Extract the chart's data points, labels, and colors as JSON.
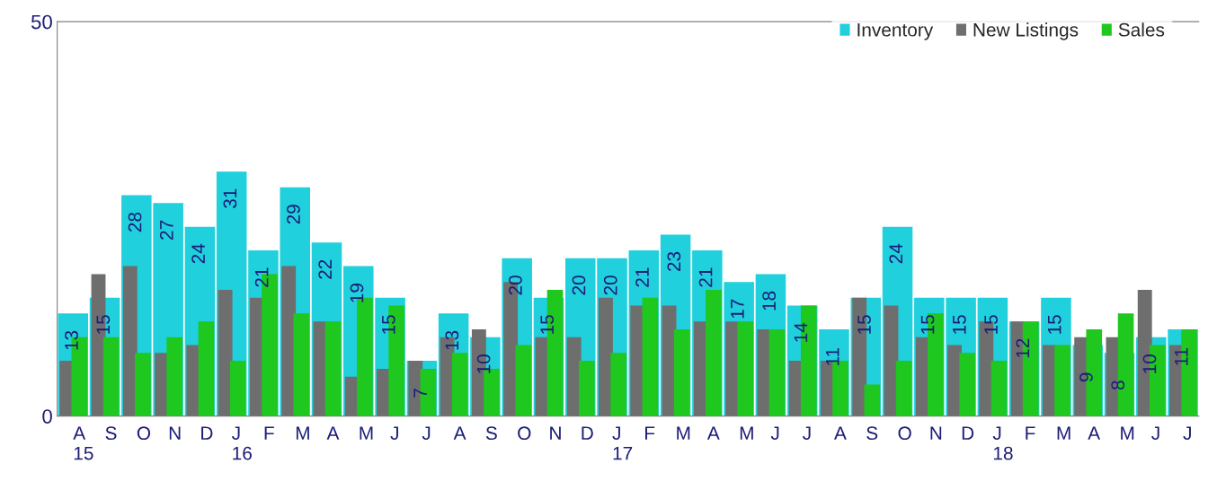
{
  "chart_data": {
    "type": "bar",
    "categories": [
      "A\n15",
      "S",
      "O",
      "N",
      "D",
      "J\n16",
      "F",
      "M",
      "A",
      "M",
      "J",
      "J",
      "A",
      "S",
      "O",
      "N",
      "D",
      "J\n17",
      "F",
      "M",
      "A",
      "M",
      "J",
      "J",
      "A",
      "S",
      "O",
      "N",
      "D",
      "J\n18",
      "F",
      "M",
      "A",
      "M",
      "J",
      "J"
    ],
    "series": [
      {
        "name": "Inventory",
        "color": "#20d0dc",
        "values": [
          13,
          15,
          28,
          27,
          24,
          31,
          21,
          29,
          22,
          19,
          15,
          7,
          13,
          10,
          20,
          15,
          20,
          20,
          21,
          23,
          21,
          17,
          18,
          14,
          11,
          15,
          24,
          15,
          15,
          15,
          12,
          15,
          9,
          8,
          10,
          11
        ],
        "value_labels": [
          "13",
          "15",
          "28",
          "27",
          "24",
          "31",
          "21",
          "29",
          "22",
          "19",
          "15",
          "7",
          "13",
          "10",
          "20",
          "15",
          "20",
          "20",
          "21",
          "23",
          "21",
          "17",
          "18",
          "14",
          "11",
          "15",
          "24",
          "15",
          "15",
          "15",
          "12",
          "15",
          "9",
          "8",
          "10",
          "11"
        ]
      },
      {
        "name": "New Listings",
        "color": "#6e6e6e",
        "values": [
          7,
          18,
          19,
          8,
          9,
          16,
          15,
          19,
          12,
          5,
          6,
          7,
          10,
          11,
          17,
          10,
          10,
          15,
          14,
          14,
          12,
          12,
          11,
          7,
          7,
          15,
          14,
          10,
          9,
          12,
          12,
          9,
          10,
          10,
          16,
          9
        ]
      },
      {
        "name": "Sales",
        "color": "#1ec81e",
        "values": [
          10,
          10,
          8,
          10,
          12,
          7,
          18,
          13,
          12,
          15,
          14,
          6,
          8,
          6,
          9,
          16,
          7,
          8,
          15,
          11,
          16,
          12,
          11,
          14,
          7,
          4,
          7,
          13,
          8,
          7,
          12,
          9,
          11,
          13,
          9,
          11
        ]
      }
    ],
    "ylim": [
      0,
      50
    ],
    "yticks": [
      0,
      50
    ],
    "grid": false,
    "legend": "top right"
  }
}
